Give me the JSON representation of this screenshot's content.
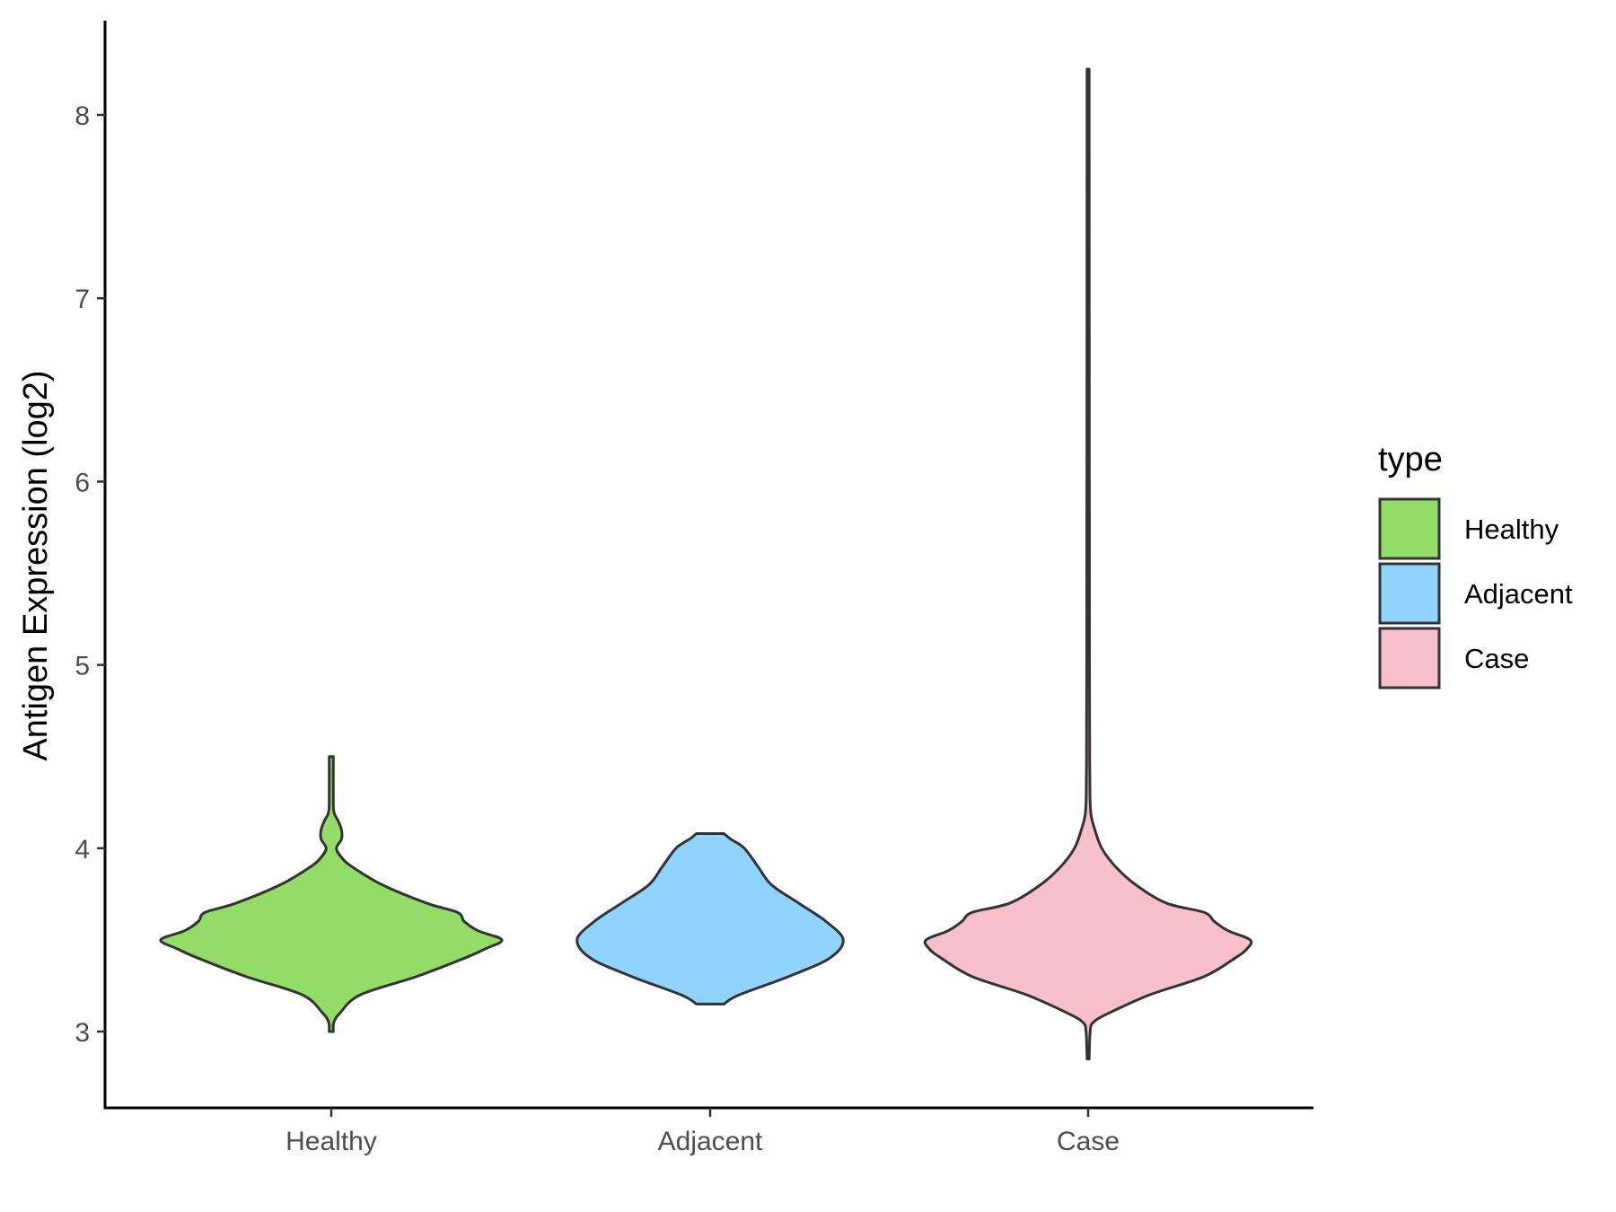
{
  "chart_data": {
    "type": "violin",
    "title": "",
    "xlabel": "",
    "ylabel": "Antigen Expression (log2)",
    "categories": [
      "Healthy",
      "Adjacent",
      "Case"
    ],
    "yticks": [
      3,
      4,
      5,
      6,
      7,
      8
    ],
    "ylim": [
      2.6,
      8.5
    ],
    "legend": {
      "title": "type",
      "position": "right",
      "entries": [
        "Healthy",
        "Adjacent",
        "Case"
      ]
    },
    "colors": {
      "Healthy": "#92DC67",
      "Adjacent": "#91D3FF",
      "Case": "#F7C0CB",
      "outline": "#333333"
    },
    "series": [
      {
        "name": "Healthy",
        "density": [
          [
            3.0,
            0.012
          ],
          [
            3.05,
            0.015
          ],
          [
            3.1,
            0.05
          ],
          [
            3.2,
            0.17
          ],
          [
            3.3,
            0.5
          ],
          [
            3.4,
            0.78
          ],
          [
            3.45,
            0.9
          ],
          [
            3.5,
            1.0
          ],
          [
            3.55,
            0.86
          ],
          [
            3.6,
            0.78
          ],
          [
            3.65,
            0.74
          ],
          [
            3.7,
            0.56
          ],
          [
            3.8,
            0.3
          ],
          [
            3.9,
            0.12
          ],
          [
            3.95,
            0.06
          ],
          [
            4.0,
            0.03
          ],
          [
            4.05,
            0.06
          ],
          [
            4.1,
            0.06
          ],
          [
            4.15,
            0.04
          ],
          [
            4.2,
            0.015
          ],
          [
            4.3,
            0.012
          ],
          [
            4.5,
            0.012
          ]
        ]
      },
      {
        "name": "Adjacent",
        "density": [
          [
            3.15,
            0.08
          ],
          [
            3.2,
            0.17
          ],
          [
            3.3,
            0.46
          ],
          [
            3.4,
            0.7
          ],
          [
            3.5,
            0.78
          ],
          [
            3.6,
            0.68
          ],
          [
            3.7,
            0.52
          ],
          [
            3.8,
            0.36
          ],
          [
            3.9,
            0.28
          ],
          [
            4.0,
            0.2
          ],
          [
            4.05,
            0.12
          ],
          [
            4.08,
            0.08
          ]
        ]
      },
      {
        "name": "Case",
        "density": [
          [
            2.85,
            0.006
          ],
          [
            3.0,
            0.012
          ],
          [
            3.05,
            0.03
          ],
          [
            3.1,
            0.12
          ],
          [
            3.2,
            0.36
          ],
          [
            3.3,
            0.68
          ],
          [
            3.4,
            0.86
          ],
          [
            3.45,
            0.93
          ],
          [
            3.5,
            0.95
          ],
          [
            3.55,
            0.82
          ],
          [
            3.6,
            0.74
          ],
          [
            3.65,
            0.68
          ],
          [
            3.7,
            0.46
          ],
          [
            3.8,
            0.28
          ],
          [
            3.9,
            0.16
          ],
          [
            4.0,
            0.08
          ],
          [
            4.1,
            0.04
          ],
          [
            4.2,
            0.015
          ],
          [
            4.4,
            0.01
          ],
          [
            5.0,
            0.008
          ],
          [
            8.25,
            0.006
          ]
        ]
      }
    ]
  }
}
